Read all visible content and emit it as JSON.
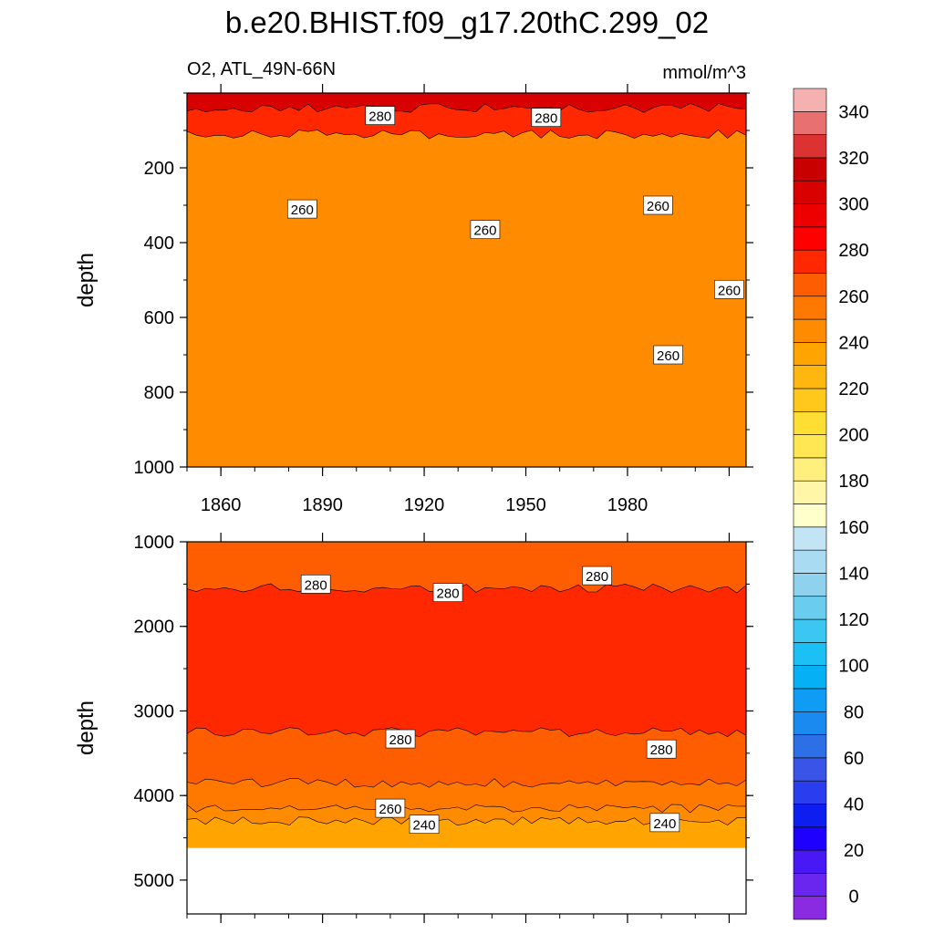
{
  "chart_data": {
    "type": "heatmap",
    "title": "b.e20.BHIST.f09_g17.20thC.299_02",
    "subtitle_left": "O2, ATL_49N-66N",
    "units": "mmol/m^3",
    "colorbar": {
      "levels": [
        0,
        10,
        20,
        30,
        40,
        50,
        60,
        70,
        80,
        90,
        100,
        110,
        120,
        130,
        140,
        150,
        160,
        170,
        180,
        190,
        200,
        210,
        220,
        230,
        240,
        250,
        260,
        270,
        280,
        290,
        300,
        310,
        320,
        330,
        340,
        350
      ],
      "tick_labels": [
        "0",
        "20",
        "40",
        "60",
        "80",
        "100",
        "120",
        "140",
        "160",
        "180",
        "200",
        "220",
        "240",
        "260",
        "280",
        "300",
        "320",
        "340"
      ],
      "colors": [
        "#8a2be2",
        "#6a25ef",
        "#4818f5",
        "#1e00ff",
        "#0d1ff0",
        "#2a3ef0",
        "#3a54e8",
        "#2c6fe6",
        "#1a8af0",
        "#0f9cf5",
        "#06b0f5",
        "#1cc0f5",
        "#3cc6f2",
        "#6acdf0",
        "#8fd2ee",
        "#a9dbf2",
        "#c2e4f5",
        "#ffffcc",
        "#fff6a8",
        "#ffef7d",
        "#ffe754",
        "#ffde33",
        "#ffc81a",
        "#ffb70f",
        "#ffa400",
        "#ff8c00",
        "#ff7800",
        "#ff5e00",
        "#ff2800",
        "#ff0000",
        "#ee0000",
        "#d90000",
        "#c80000",
        "#dc3232",
        "#e87070",
        "#f5b0b0"
      ]
    },
    "panels": [
      {
        "name": "upper",
        "ylabel": "depth",
        "xlabel": "",
        "y_range": [
          0,
          1000
        ],
        "y_inverted": true,
        "y_ticks": [
          "200",
          "400",
          "600",
          "800",
          "1000"
        ],
        "x_range": [
          1850,
          2015
        ],
        "x_ticks": [
          "1860",
          "1890",
          "1920",
          "1950",
          "1980"
        ],
        "bands": [
          {
            "from": 0,
            "to": 40,
            "value": 310
          },
          {
            "from": 40,
            "to": 110,
            "value": 285
          },
          {
            "from": 110,
            "to": 1000,
            "value": 255
          }
        ],
        "contour_labels": [
          {
            "text": "280",
            "x": 1907,
            "y": 60
          },
          {
            "text": "280",
            "x": 1956,
            "y": 65
          },
          {
            "text": "260",
            "x": 1884,
            "y": 310
          },
          {
            "text": "260",
            "x": 1938,
            "y": 365
          },
          {
            "text": "260",
            "x": 1989,
            "y": 300
          },
          {
            "text": "260",
            "x": 2010,
            "y": 525
          },
          {
            "text": "260",
            "x": 1992,
            "y": 700
          }
        ]
      },
      {
        "name": "lower",
        "ylabel": "depth",
        "xlabel": "",
        "y_range": [
          1000,
          5400
        ],
        "y_inverted": true,
        "y_ticks": [
          "1000",
          "2000",
          "3000",
          "4000",
          "5000"
        ],
        "x_range": [
          1850,
          2015
        ],
        "bottom_depth": 4620,
        "bands": [
          {
            "from": 1000,
            "to": 1550,
            "value": 275
          },
          {
            "from": 1550,
            "to": 3250,
            "value": 285
          },
          {
            "from": 3250,
            "to": 3850,
            "value": 275
          },
          {
            "from": 3850,
            "to": 4150,
            "value": 265
          },
          {
            "from": 4150,
            "to": 4300,
            "value": 255
          },
          {
            "from": 4300,
            "to": 4620,
            "value": 245
          }
        ],
        "contour_labels": [
          {
            "text": "280",
            "x": 1888,
            "y": 1500
          },
          {
            "text": "280",
            "x": 1927,
            "y": 1600
          },
          {
            "text": "280",
            "x": 1971,
            "y": 1400
          },
          {
            "text": "280",
            "x": 1913,
            "y": 3330
          },
          {
            "text": "280",
            "x": 1990,
            "y": 3450
          },
          {
            "text": "260",
            "x": 1910,
            "y": 4150
          },
          {
            "text": "240",
            "x": 1920,
            "y": 4340
          },
          {
            "text": "240",
            "x": 1991,
            "y": 4320
          }
        ]
      }
    ]
  }
}
